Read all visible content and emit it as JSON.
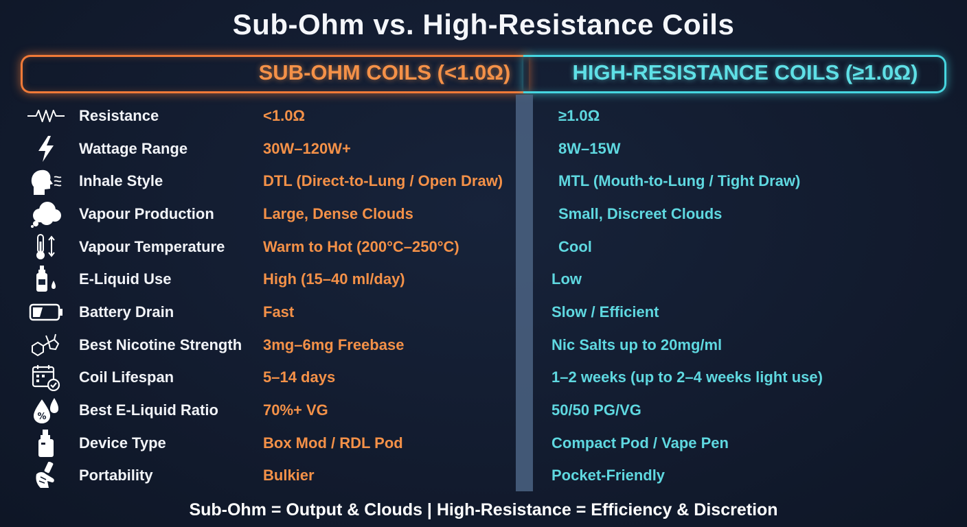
{
  "title": "Sub-Ohm vs. High-Resistance Coils",
  "colors": {
    "sub_ohm_accent": "#f49148",
    "high_res_accent": "#5fd8e0",
    "background": "#121b2e"
  },
  "headers": {
    "sub_ohm": "SUB-OHM COILS (<1.0Ω)",
    "high_resistance": "HIGH-RESISTANCE COILS (≥1.0Ω)"
  },
  "rows": [
    {
      "icon": "resistor-icon",
      "label": "Resistance",
      "sub_ohm": "<1.0Ω",
      "high_resistance": "≥1.0Ω"
    },
    {
      "icon": "lightning-bolt-icon",
      "label": "Wattage Range",
      "sub_ohm": "30W–120W+",
      "high_resistance": "8W–15W"
    },
    {
      "icon": "head-inhale-icon",
      "label": "Inhale Style",
      "sub_ohm": "DTL (Direct-to-Lung / Open Draw)",
      "high_resistance": "MTL (Mouth-to-Lung / Tight Draw)"
    },
    {
      "icon": "cloud-icon",
      "label": "Vapour Production",
      "sub_ohm": "Large, Dense Clouds",
      "high_resistance": "Small, Discreet Clouds"
    },
    {
      "icon": "thermometer-icon",
      "label": "Vapour Temperature",
      "sub_ohm": "Warm to Hot (200°C–250°C)",
      "high_resistance": "Cool"
    },
    {
      "icon": "e-liquid-bottle-icon",
      "label": "E-Liquid Use",
      "sub_ohm": "High (15–40 ml/day)",
      "high_resistance": "Low"
    },
    {
      "icon": "battery-icon",
      "label": "Battery Drain",
      "sub_ohm": "Fast",
      "high_resistance": "Slow / Efficient"
    },
    {
      "icon": "nicotine-molecule-icon",
      "label": "Best Nicotine Strength",
      "sub_ohm": "3mg–6mg Freebase",
      "high_resistance": "Nic Salts up to 20mg/ml"
    },
    {
      "icon": "calendar-check-icon",
      "label": "Coil Lifespan",
      "sub_ohm": "5–14 days",
      "high_resistance": "1–2 weeks (up to 2–4 weeks light use)"
    },
    {
      "icon": "liquid-drops-percent-icon",
      "label": "Best E-Liquid Ratio",
      "sub_ohm": "70%+ VG",
      "high_resistance": "50/50 PG/VG"
    },
    {
      "icon": "vape-device-icon",
      "label": "Device Type",
      "sub_ohm": "Box Mod / RDL Pod",
      "high_resistance": "Compact Pod / Vape Pen"
    },
    {
      "icon": "hand-holding-device-icon",
      "label": "Portability",
      "sub_ohm": "Bulkier",
      "high_resistance": "Pocket-Friendly"
    }
  ],
  "footer": "Sub-Ohm = Output & Clouds | High-Resistance = Efficiency & Discretion"
}
